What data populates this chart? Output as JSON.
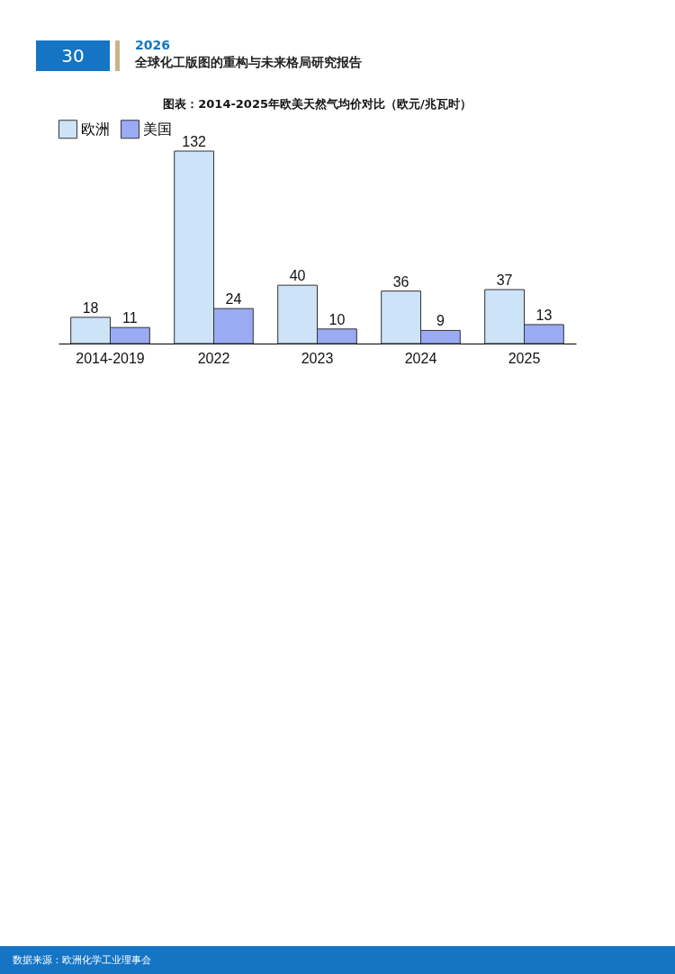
{
  "chart_data": {
    "type": "bar",
    "title": "图表：2014-2025年欧美天然气均价对比（欧元/兆瓦时）",
    "categories": [
      "2014-2019",
      "2022",
      "2023",
      "2024",
      "2025"
    ],
    "series": [
      {
        "name": "欧洲",
        "color": "#cce3f8",
        "values": [
          18,
          132,
          40,
          36,
          37
        ]
      },
      {
        "name": "美国",
        "color": "#9aabf4",
        "values": [
          11,
          24,
          10,
          9,
          13
        ]
      }
    ],
    "data_labels": true,
    "legend": "top",
    "grid": false,
    "tick_labels": "x",
    "annotations": [
      "30",
      "2026",
      "全球化工版图的重构与未来格局研究报告",
      "数据来源：欧洲化学工业理事会"
    ]
  }
}
